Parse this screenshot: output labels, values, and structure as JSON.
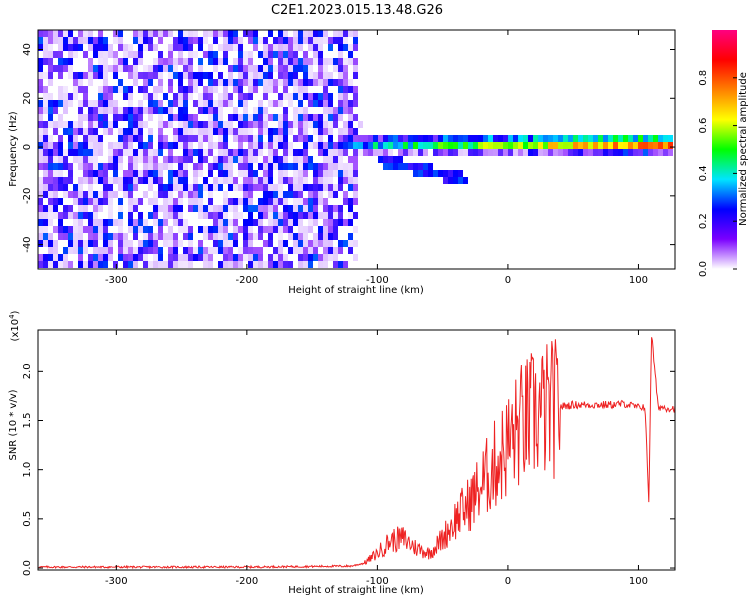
{
  "title": "C2E1.2023.015.13.48.G26",
  "chart_data": [
    {
      "type": "heatmap",
      "xlabel": "Height of straight line (km)",
      "ylabel": "Frequency (Hz)",
      "xlim": [
        -360,
        128
      ],
      "ylim": [
        -50,
        48
      ],
      "xticks": [
        -300,
        -200,
        -100,
        0,
        100
      ],
      "yticks": [
        40,
        20,
        0,
        -20,
        -40
      ],
      "colorbar": {
        "label": "Normalized spectral amplitude",
        "range": [
          0.0,
          1.0
        ],
        "ticks": [
          0.0,
          0.2,
          0.4,
          0.6,
          0.8
        ],
        "colormap": "rainbow",
        "colors": [
          "#ffffff",
          "#7a00ff",
          "#0000ff",
          "#00e5ff",
          "#00ff00",
          "#ffff00",
          "#ff8000",
          "#ff0000",
          "#ff0080"
        ]
      },
      "features": {
        "broadband_noise_region_km": [
          -360,
          -115
        ],
        "noise_amplitude": 0.25,
        "signal_band_start_km": -130,
        "signal_band_center_hz": 1,
        "signal_band_peak_amplitude": 0.9,
        "secondary_descending_branch_km": [
          -100,
          -30
        ],
        "secondary_descending_branch_hz": [
          -5,
          -14
        ]
      }
    },
    {
      "type": "line",
      "xlabel": "Height of straight line (km)",
      "ylabel": "SNR (10 * v/v)",
      "multiplier_label": "(x10",
      "multiplier_exponent": "4",
      "xlim": [
        -360,
        128
      ],
      "ylim": [
        -0.02,
        2.42
      ],
      "xticks": [
        -300,
        -200,
        -100,
        0,
        100
      ],
      "yticks": [
        0.0,
        0.5,
        1.0,
        1.5,
        2.0
      ],
      "ytick_labels": [
        "0.0",
        "0.5",
        "1.0",
        "1.5",
        "2.0"
      ],
      "series": [
        {
          "color": "#ee2222",
          "x": [
            -360,
            -300,
            -200,
            -120,
            -110,
            -100,
            -90,
            -80,
            -70,
            -60,
            -50,
            -40,
            -30,
            -20,
            -10,
            0,
            10,
            20,
            30,
            40,
            50,
            60,
            70,
            80,
            90,
            100,
            105,
            108,
            110,
            115,
            128
          ],
          "y": [
            0.01,
            0.01,
            0.01,
            0.02,
            0.05,
            0.15,
            0.28,
            0.3,
            0.2,
            0.15,
            0.3,
            0.5,
            0.65,
            0.85,
            1.05,
            1.25,
            1.45,
            1.55,
            1.6,
            1.64,
            1.66,
            1.66,
            1.66,
            1.66,
            1.67,
            1.63,
            1.65,
            0.65,
            2.38,
            1.64,
            1.62
          ]
        }
      ]
    }
  ]
}
